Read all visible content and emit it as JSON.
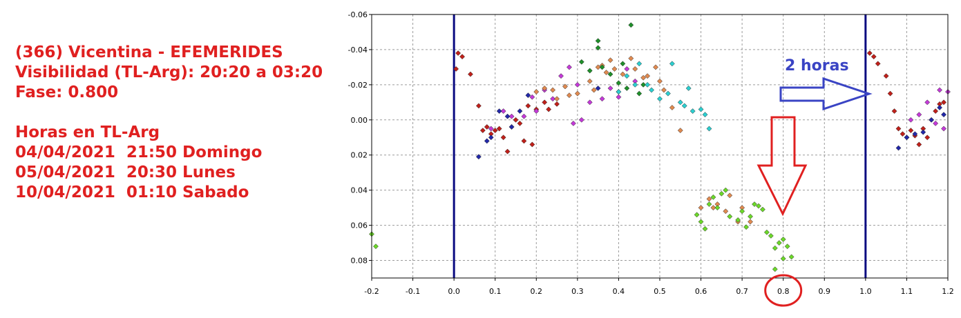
{
  "info": {
    "title": "(366) Vicentina - EFEMERIDES",
    "visibility": "Visibilidad (TL-Arg): 20:20 a 03:20",
    "phase": "Fase: 0.800",
    "hours_heading": "Horas en TL-Arg",
    "times": [
      "04/04/2021  21:50 Domingo",
      "05/04/2021  20:30 Lunes",
      "10/04/2021  01:10 Sabado"
    ]
  },
  "colors": {
    "annotation_red": "#e02020",
    "annotation_blue": "#3a44c4",
    "phase_line": "#0a0a80",
    "grid": "#9a9a9a",
    "series": {
      "darkred": "#c0201a",
      "magenta": "#c43ad8",
      "blue": "#2228a8",
      "orange": "#e08a50",
      "green": "#1f8f2a",
      "cyan": "#2ccfd0",
      "lightgreen": "#6cd82a"
    }
  },
  "annotations": {
    "blue_arrow_label": "2 horas"
  },
  "chart_data": {
    "type": "scatter",
    "xlim": [
      -0.2,
      1.2
    ],
    "ylim": [
      -0.06,
      0.09
    ],
    "y_inverted": true,
    "grid": true,
    "x_ticks": [
      "-0.2",
      "-0.1",
      "0.0",
      "0.1",
      "0.2",
      "0.3",
      "0.4",
      "0.5",
      "0.6",
      "0.7",
      "0.8",
      "0.9",
      "1.0",
      "1.1",
      "1.2"
    ],
    "y_ticks": [
      "-0.06",
      "-0.04",
      "-0.02",
      "0.00",
      "0.02",
      "0.04",
      "0.06",
      "0.08"
    ],
    "y_tick_values": [
      -0.06,
      -0.04,
      -0.02,
      0.0,
      0.02,
      0.04,
      0.06,
      0.08
    ],
    "x_tick_values": [
      -0.2,
      -0.1,
      0.0,
      0.1,
      0.2,
      0.3,
      0.4,
      0.5,
      0.6,
      0.7,
      0.8,
      0.9,
      1.0,
      1.1,
      1.2
    ],
    "vertical_lines": [
      0.0,
      1.0
    ],
    "highlighted_phase": 0.8,
    "series": [
      {
        "color_key": "darkred",
        "points": [
          [
            0.005,
            -0.029
          ],
          [
            0.01,
            -0.038
          ],
          [
            0.02,
            -0.036
          ],
          [
            0.04,
            -0.026
          ],
          [
            0.06,
            -0.008
          ],
          [
            0.07,
            0.006
          ],
          [
            0.08,
            0.004
          ],
          [
            0.09,
            0.008
          ],
          [
            0.1,
            0.006
          ],
          [
            0.11,
            0.005
          ],
          [
            0.12,
            0.01
          ],
          [
            0.13,
            0.018
          ],
          [
            0.14,
            0.004
          ],
          [
            0.15,
            0.0
          ],
          [
            0.16,
            0.002
          ],
          [
            0.17,
            0.012
          ],
          [
            0.18,
            -0.008
          ],
          [
            0.19,
            0.014
          ],
          [
            0.2,
            -0.006
          ],
          [
            0.22,
            -0.01
          ],
          [
            0.23,
            -0.006
          ],
          [
            0.25,
            -0.009
          ],
          [
            1.01,
            -0.038
          ],
          [
            1.02,
            -0.036
          ],
          [
            1.03,
            -0.032
          ],
          [
            1.05,
            -0.025
          ],
          [
            1.06,
            -0.015
          ],
          [
            1.07,
            -0.005
          ],
          [
            1.08,
            0.005
          ],
          [
            1.09,
            0.008
          ],
          [
            1.1,
            0.01
          ],
          [
            1.11,
            0.006
          ],
          [
            1.12,
            0.009
          ],
          [
            1.13,
            0.014
          ],
          [
            1.14,
            0.005
          ],
          [
            1.15,
            0.01
          ],
          [
            1.16,
            0.0
          ],
          [
            1.17,
            -0.005
          ],
          [
            1.18,
            -0.009
          ],
          [
            1.19,
            -0.01
          ]
        ]
      },
      {
        "color_key": "magenta",
        "points": [
          [
            0.09,
            0.005
          ],
          [
            0.12,
            -0.005
          ],
          [
            0.14,
            -0.002
          ],
          [
            0.17,
            -0.002
          ],
          [
            0.19,
            -0.013
          ],
          [
            0.2,
            -0.005
          ],
          [
            0.22,
            -0.017
          ],
          [
            0.24,
            -0.012
          ],
          [
            0.26,
            -0.025
          ],
          [
            0.28,
            -0.03
          ],
          [
            0.3,
            -0.02
          ],
          [
            0.33,
            -0.01
          ],
          [
            0.36,
            -0.012
          ],
          [
            0.38,
            -0.018
          ],
          [
            0.4,
            -0.013
          ],
          [
            0.42,
            -0.029
          ],
          [
            0.44,
            -0.022
          ],
          [
            0.29,
            0.002
          ],
          [
            0.31,
            0.0
          ],
          [
            1.13,
            -0.003
          ],
          [
            1.15,
            -0.01
          ],
          [
            1.17,
            0.002
          ],
          [
            1.18,
            -0.017
          ],
          [
            1.2,
            -0.016
          ],
          [
            1.11,
            0.0
          ],
          [
            1.19,
            0.005
          ]
        ]
      },
      {
        "color_key": "blue",
        "points": [
          [
            0.06,
            0.021
          ],
          [
            0.08,
            0.012
          ],
          [
            0.09,
            0.01
          ],
          [
            0.11,
            -0.005
          ],
          [
            0.13,
            -0.002
          ],
          [
            0.14,
            0.004
          ],
          [
            0.16,
            -0.005
          ],
          [
            0.18,
            -0.014
          ],
          [
            0.35,
            -0.018
          ],
          [
            0.4,
            -0.016
          ],
          [
            1.08,
            0.016
          ],
          [
            1.1,
            0.01
          ],
          [
            1.12,
            0.008
          ],
          [
            1.14,
            0.007
          ],
          [
            1.16,
            0.0
          ],
          [
            1.18,
            -0.007
          ],
          [
            1.19,
            -0.003
          ]
        ]
      },
      {
        "color_key": "orange",
        "points": [
          [
            0.2,
            -0.016
          ],
          [
            0.22,
            -0.018
          ],
          [
            0.24,
            -0.017
          ],
          [
            0.25,
            -0.012
          ],
          [
            0.27,
            -0.019
          ],
          [
            0.28,
            -0.014
          ],
          [
            0.3,
            -0.015
          ],
          [
            0.33,
            -0.022
          ],
          [
            0.34,
            -0.017
          ],
          [
            0.35,
            -0.03
          ],
          [
            0.36,
            -0.031
          ],
          [
            0.37,
            -0.027
          ],
          [
            0.38,
            -0.034
          ],
          [
            0.39,
            -0.029
          ],
          [
            0.41,
            -0.026
          ],
          [
            0.43,
            -0.035
          ],
          [
            0.44,
            -0.029
          ],
          [
            0.46,
            -0.024
          ],
          [
            0.47,
            -0.025
          ],
          [
            0.49,
            -0.03
          ],
          [
            0.5,
            -0.022
          ],
          [
            0.51,
            -0.017
          ],
          [
            0.53,
            -0.007
          ],
          [
            0.55,
            0.006
          ],
          [
            0.62,
            0.045
          ],
          [
            0.63,
            0.05
          ],
          [
            0.64,
            0.048
          ],
          [
            0.66,
            0.052
          ],
          [
            0.67,
            0.043
          ],
          [
            0.69,
            0.058
          ],
          [
            0.7,
            0.05
          ],
          [
            0.72,
            0.058
          ],
          [
            0.6,
            0.05
          ]
        ]
      },
      {
        "color_key": "green",
        "points": [
          [
            0.31,
            -0.033
          ],
          [
            0.33,
            -0.028
          ],
          [
            0.35,
            -0.041
          ],
          [
            0.36,
            -0.03
          ],
          [
            0.38,
            -0.026
          ],
          [
            0.4,
            -0.021
          ],
          [
            0.41,
            -0.032
          ],
          [
            0.43,
            -0.054
          ],
          [
            0.42,
            -0.018
          ],
          [
            0.46,
            -0.02
          ],
          [
            0.45,
            -0.015
          ],
          [
            0.35,
            -0.045
          ]
        ]
      },
      {
        "color_key": "cyan",
        "points": [
          [
            0.4,
            -0.016
          ],
          [
            0.42,
            -0.025
          ],
          [
            0.44,
            -0.02
          ],
          [
            0.45,
            -0.032
          ],
          [
            0.47,
            -0.02
          ],
          [
            0.48,
            -0.017
          ],
          [
            0.5,
            -0.012
          ],
          [
            0.52,
            -0.015
          ],
          [
            0.53,
            -0.032
          ],
          [
            0.55,
            -0.01
          ],
          [
            0.56,
            -0.008
          ],
          [
            0.57,
            -0.018
          ],
          [
            0.58,
            -0.005
          ],
          [
            0.6,
            -0.006
          ],
          [
            0.61,
            -0.003
          ],
          [
            0.62,
            0.005
          ]
        ]
      },
      {
        "color_key": "lightgreen",
        "points": [
          [
            -0.2,
            0.065
          ],
          [
            -0.19,
            0.072
          ],
          [
            0.6,
            0.058
          ],
          [
            0.61,
            0.062
          ],
          [
            0.62,
            0.048
          ],
          [
            0.63,
            0.044
          ],
          [
            0.64,
            0.05
          ],
          [
            0.65,
            0.042
          ],
          [
            0.66,
            0.04
          ],
          [
            0.67,
            0.055
          ],
          [
            0.69,
            0.057
          ],
          [
            0.7,
            0.052
          ],
          [
            0.71,
            0.061
          ],
          [
            0.72,
            0.055
          ],
          [
            0.73,
            0.048
          ],
          [
            0.74,
            0.049
          ],
          [
            0.75,
            0.051
          ],
          [
            0.76,
            0.064
          ],
          [
            0.77,
            0.066
          ],
          [
            0.78,
            0.073
          ],
          [
            0.79,
            0.07
          ],
          [
            0.8,
            0.068
          ],
          [
            0.81,
            0.072
          ],
          [
            0.82,
            0.078
          ],
          [
            0.8,
            0.079
          ],
          [
            0.78,
            0.085
          ],
          [
            0.59,
            0.054
          ]
        ]
      }
    ]
  }
}
